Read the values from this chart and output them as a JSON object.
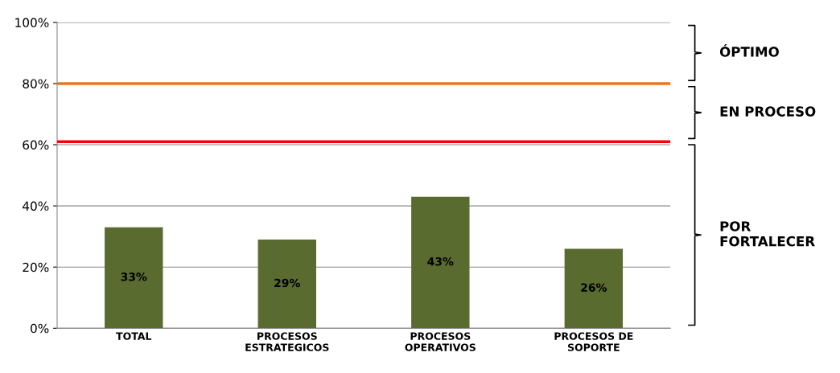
{
  "chart_data": {
    "type": "bar",
    "categories": [
      "TOTAL",
      "PROCESOS\nESTRATEGICOS",
      "PROCESOS\nOPERATIVOS",
      "PROCESOS DE\nSOPORTE"
    ],
    "values": [
      33,
      29,
      43,
      26
    ],
    "value_labels": [
      "33%",
      "29%",
      "43%",
      "26%"
    ],
    "color": "#5a6b2f",
    "ylim": [
      0,
      100
    ],
    "yticks": [
      {
        "value": 0,
        "label": "0%"
      },
      {
        "value": 20,
        "label": "20%"
      },
      {
        "value": 40,
        "label": "40%"
      },
      {
        "value": 60,
        "label": "60%"
      },
      {
        "value": 80,
        "label": "80%"
      },
      {
        "value": 100,
        "label": "100%"
      }
    ],
    "grid": "y",
    "ref_lines": [
      {
        "axis": "y",
        "value": 80,
        "color": "#e87722"
      },
      {
        "axis": "y",
        "value": 61,
        "color": "#ff0000"
      }
    ],
    "annotations": [
      "POR\nFORTALECER",
      "EN PROCESO",
      "ÓPTIMO"
    ]
  }
}
